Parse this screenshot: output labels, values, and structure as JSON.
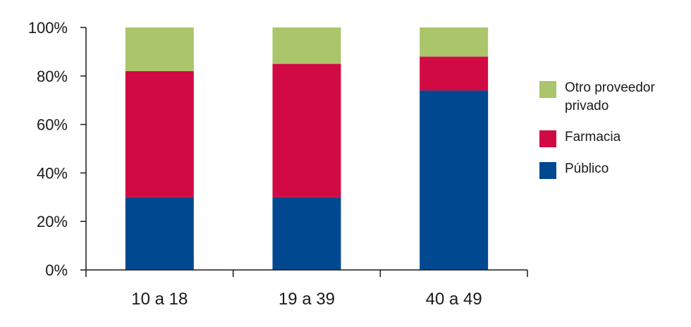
{
  "chart_data": {
    "type": "bar",
    "stacked": true,
    "categories": [
      "10 a 18",
      "19 a 39",
      "40 a 49"
    ],
    "series": [
      {
        "name": "Público",
        "color": "#004990",
        "values": [
          30,
          30,
          74
        ]
      },
      {
        "name": "Farmacia",
        "color": "#d10a44",
        "values": [
          52,
          55,
          14
        ]
      },
      {
        "name": "Otro proveedor privado",
        "color": "#abc56b",
        "values": [
          18,
          15,
          12
        ]
      }
    ],
    "y_ticks": [
      "0%",
      "20%",
      "40%",
      "60%",
      "80%",
      "100%"
    ],
    "ylim": [
      0,
      100
    ],
    "grid": false,
    "legend_position": "right"
  }
}
